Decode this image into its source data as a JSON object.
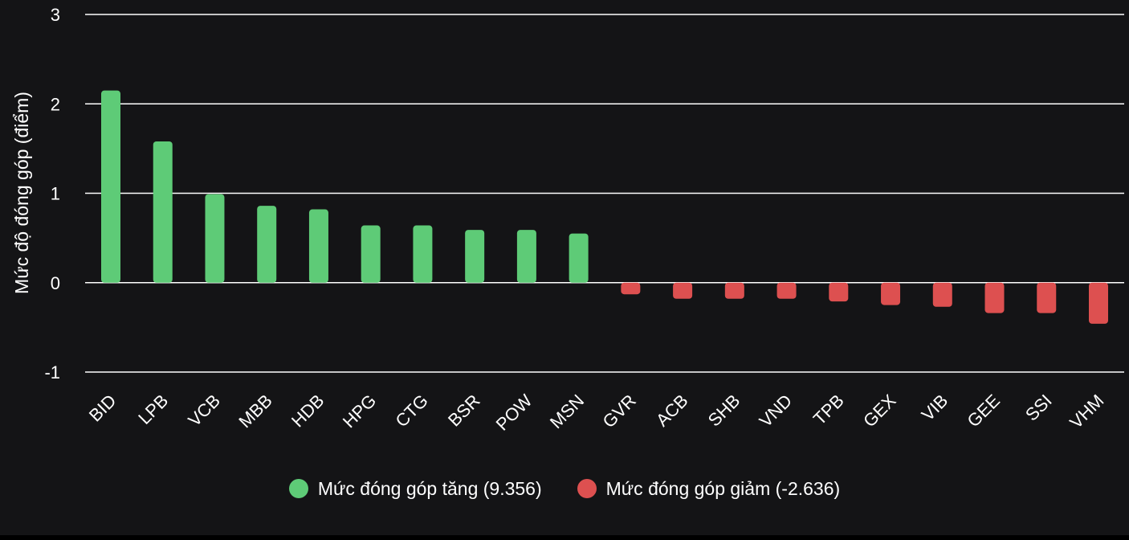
{
  "chart_data": {
    "type": "bar",
    "title": "",
    "xlabel": "",
    "ylabel": "Mức độ đóng góp (điểm)",
    "ylim": [
      -1,
      3
    ],
    "yticks": [
      -1,
      0,
      1,
      2,
      3
    ],
    "grid": true,
    "legend_position": "bottom",
    "categories": [
      "BID",
      "LPB",
      "VCB",
      "MBB",
      "HDB",
      "HPG",
      "CTG",
      "BSR",
      "POW",
      "MSN",
      "GVR",
      "ACB",
      "SHB",
      "VND",
      "TPB",
      "GEX",
      "VIB",
      "GEE",
      "SSI",
      "VHM"
    ],
    "values": [
      2.15,
      1.58,
      0.99,
      0.86,
      0.82,
      0.64,
      0.64,
      0.59,
      0.59,
      0.55,
      -0.13,
      -0.18,
      -0.18,
      -0.18,
      -0.21,
      -0.25,
      -0.27,
      -0.34,
      -0.34,
      -0.46
    ],
    "series": [
      {
        "name": "Mức đóng góp tăng (9.356)",
        "color": "#5ecb77"
      },
      {
        "name": "Mức đóng góp giảm (-2.636)",
        "color": "#dd5050"
      }
    ]
  }
}
